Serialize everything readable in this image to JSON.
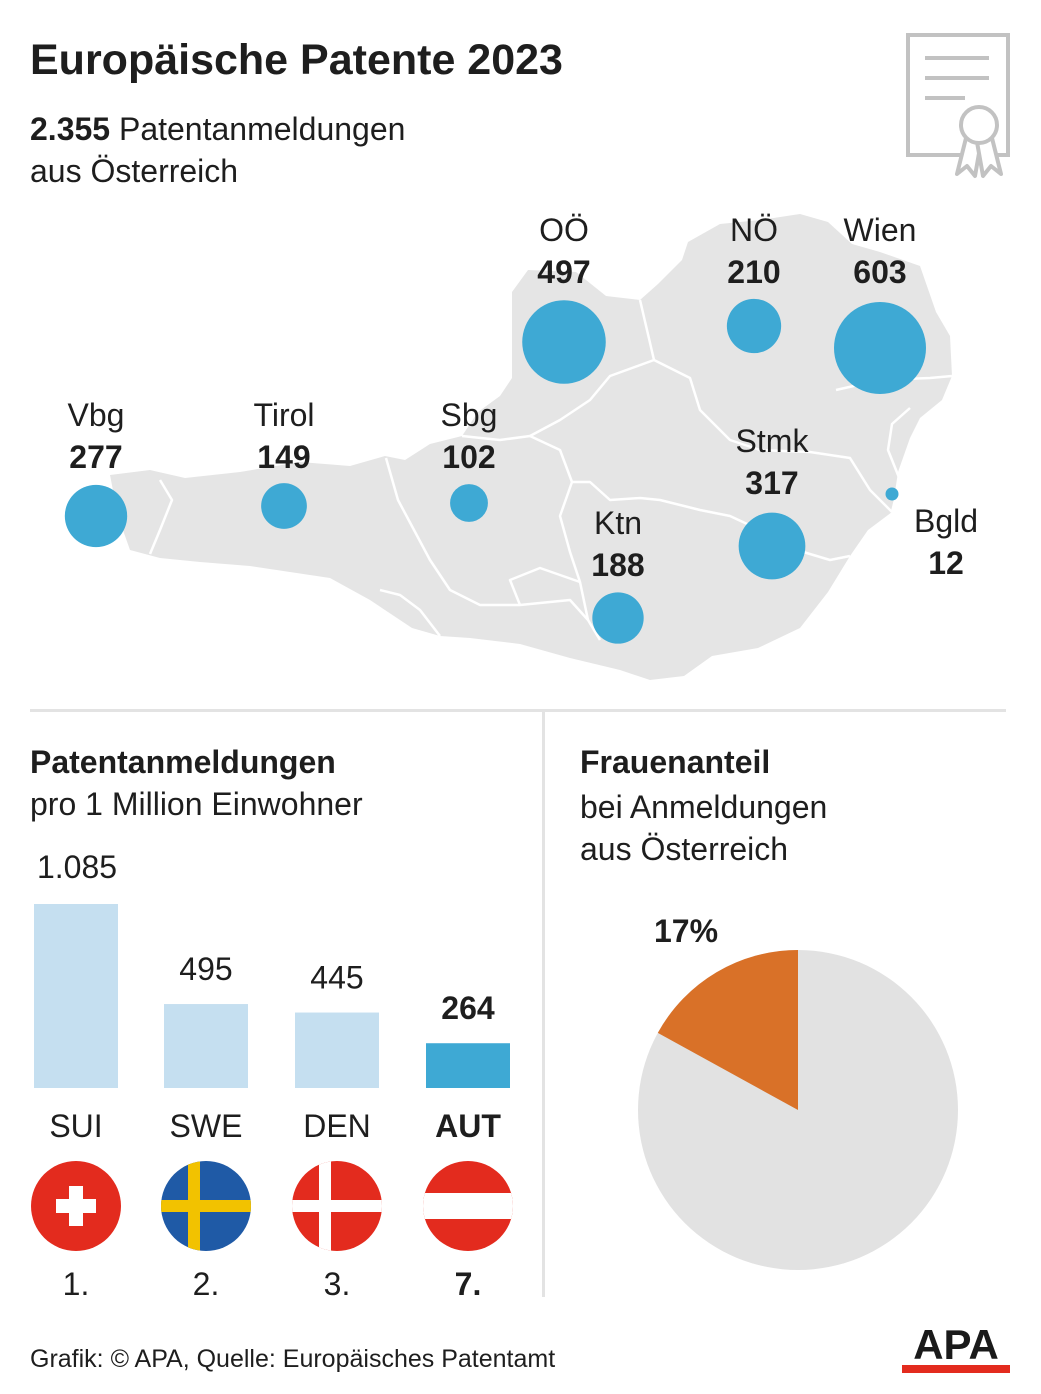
{
  "header": {
    "title": "Europäische Patente 2023",
    "subtitle_strong": "2.355",
    "subtitle_rest": " Patentanmeldungen",
    "subtitle_line2": "aus Österreich",
    "icon": "certificate-icon"
  },
  "bar_section": {
    "title": "Patentanmeldungen",
    "subtitle": "pro 1 Million Einwohner"
  },
  "pie_section": {
    "title": "Frauenanteil",
    "subtitle_line1": "bei Anmeldungen",
    "subtitle_line2": "aus Österreich"
  },
  "footer": {
    "credit": "Grafik: © APA, Quelle: Europäisches Patentamt",
    "logo_text": "APA"
  },
  "colors": {
    "bubble": "#3ea9d4",
    "bar_light": "#c5dff0",
    "bar_highlight": "#3ea9d4",
    "pie_highlight": "#d97128",
    "pie_rest": "#e2e2e2",
    "map_fill": "#e5e5e5",
    "flag_red": "#e32b1e"
  },
  "chart_data": [
    {
      "type": "scatter",
      "subtype": "bubble-map",
      "title": "",
      "series": [
        {
          "label": "OÖ",
          "value": 497
        },
        {
          "label": "NÖ",
          "value": 210
        },
        {
          "label": "Wien",
          "value": 603
        },
        {
          "label": "Vbg",
          "value": 277
        },
        {
          "label": "Tirol",
          "value": 149
        },
        {
          "label": "Sbg",
          "value": 102
        },
        {
          "label": "Stmk",
          "value": 317
        },
        {
          "label": "Ktn",
          "value": 188
        },
        {
          "label": "Bgld",
          "value": 12
        }
      ]
    },
    {
      "type": "bar",
      "title": "Patentanmeldungen",
      "subtitle": "pro 1 Million Einwohner",
      "categories": [
        "SUI",
        "SWE",
        "DEN",
        "AUT"
      ],
      "values": [
        1085,
        495,
        445,
        264
      ],
      "value_labels": [
        "1.085",
        "495",
        "445",
        "264"
      ],
      "ranks": [
        "1.",
        "2.",
        "3.",
        "7."
      ],
      "highlight": "AUT",
      "flags": [
        "flag-switzerland-icon",
        "flag-sweden-icon",
        "flag-denmark-icon",
        "flag-austria-icon"
      ]
    },
    {
      "type": "pie",
      "title": "Frauenanteil",
      "subtitle": "bei Anmeldungen aus Österreich",
      "values": [
        17,
        83
      ],
      "value_label": "17%"
    }
  ]
}
